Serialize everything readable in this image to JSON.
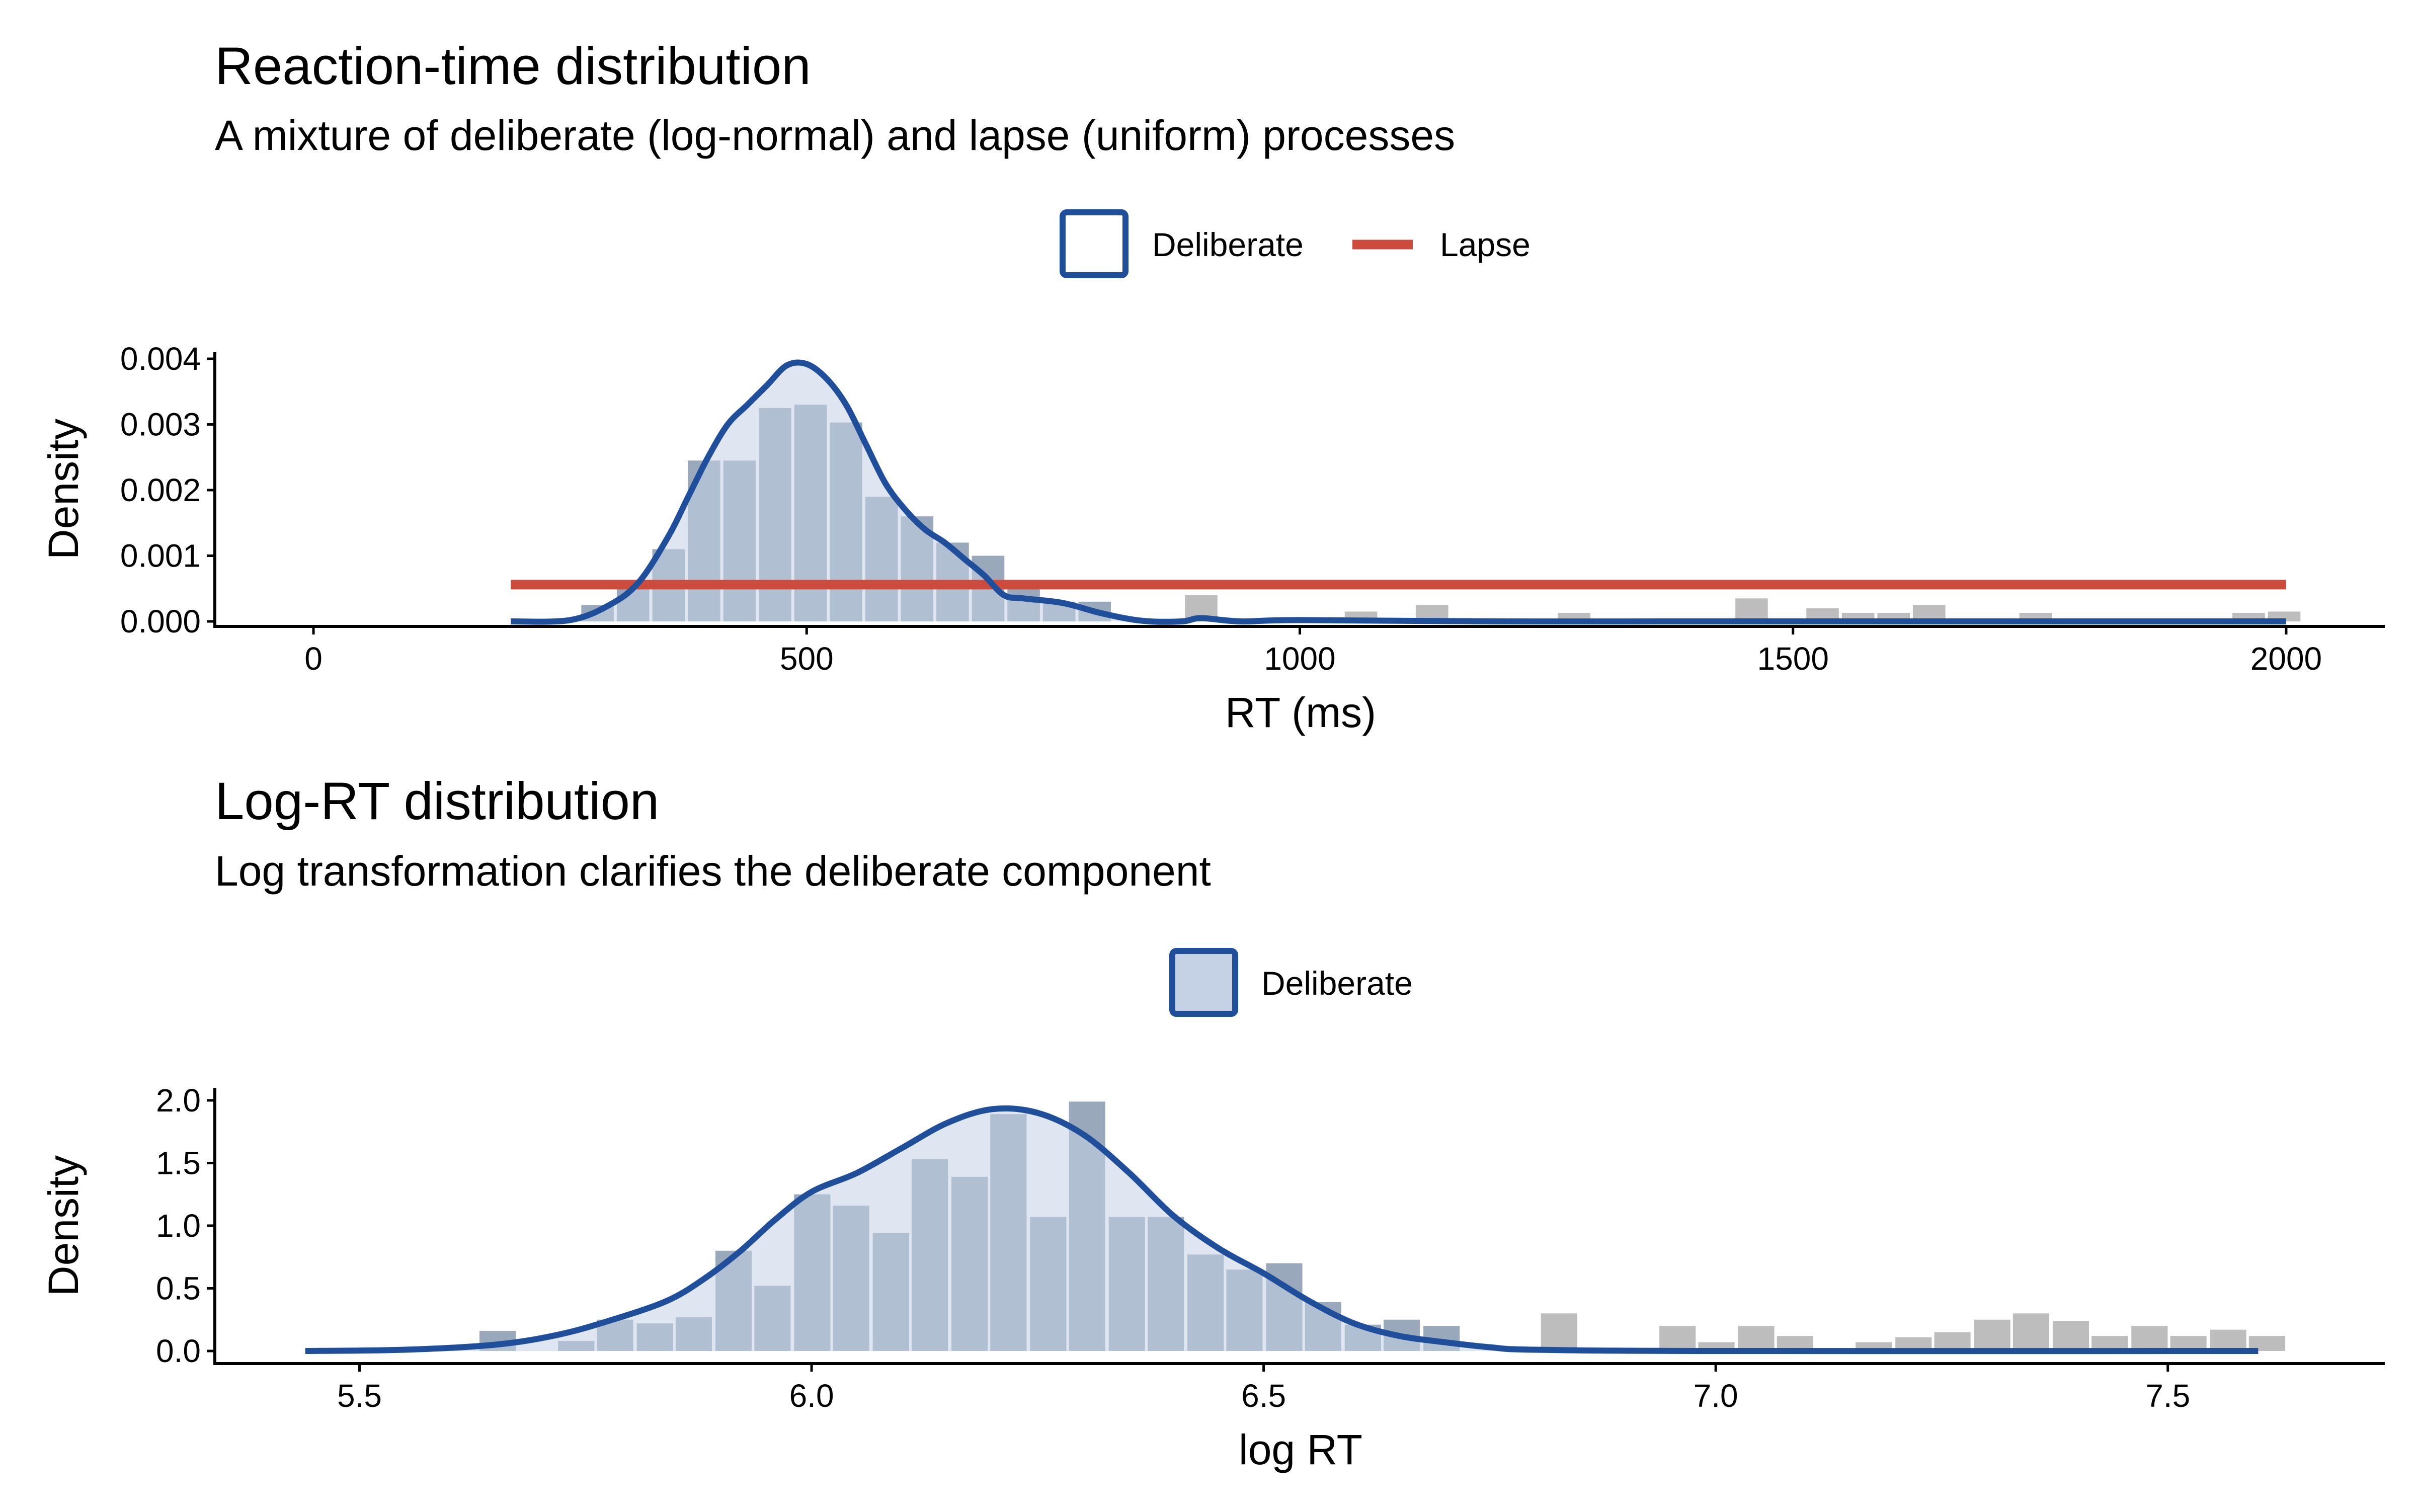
{
  "colors": {
    "deliberate_line": "#1f4e9b",
    "deliberate_fill": "#c5d2e6",
    "histogram_bar": "#bdbdbd",
    "histogram_bar_overlap": "#9aa8bb",
    "lapse_line": "#cc4b3c"
  },
  "chart_data": [
    {
      "type": "histogram",
      "title": "Reaction-time distribution",
      "subtitle": "A mixture of deliberate (log-normal) and lapse (uniform) processes",
      "xlabel": "RT (ms)",
      "ylabel": "Density",
      "xlim": [
        -100,
        2100
      ],
      "ylim": [
        0,
        0.0041
      ],
      "x_ticks": [
        0,
        500,
        1000,
        1500,
        2000
      ],
      "y_ticks": [
        0.0,
        0.001,
        0.002,
        0.003,
        0.004
      ],
      "x_tick_labels": [
        "0",
        "500",
        "1000",
        "1500",
        "2000"
      ],
      "y_tick_labels": [
        "0.000",
        "0.001",
        "0.002",
        "0.003",
        "0.004"
      ],
      "legend": {
        "position": "top",
        "entries": [
          {
            "label": "Deliberate",
            "kind": "box-outline"
          },
          {
            "label": "Lapse",
            "kind": "line"
          }
        ]
      },
      "histogram": {
        "bin_width": 36,
        "bins": [
          [
            234,
            3e-05
          ],
          [
            270,
            0.00025
          ],
          [
            306,
            0.00058
          ],
          [
            342,
            0.0011
          ],
          [
            378,
            0.00245
          ],
          [
            414,
            0.00245
          ],
          [
            450,
            0.00325
          ],
          [
            486,
            0.0033
          ],
          [
            522,
            0.00303
          ],
          [
            558,
            0.0019
          ],
          [
            594,
            0.0016
          ],
          [
            630,
            0.0012
          ],
          [
            666,
            0.001
          ],
          [
            702,
            0.0005
          ],
          [
            738,
            0.0003
          ],
          [
            774,
            0.0003
          ],
          [
            882,
            0.0004
          ],
          [
            1044,
            0.00015
          ],
          [
            1116,
            0.00025
          ],
          [
            1260,
            0.00013
          ],
          [
            1440,
            0.00035
          ],
          [
            1512,
            0.0002
          ],
          [
            1548,
            0.00013
          ],
          [
            1584,
            0.00013
          ],
          [
            1620,
            0.00025
          ],
          [
            1728,
            0.00013
          ],
          [
            1944,
            0.00013
          ],
          [
            1980,
            0.00015
          ]
        ]
      },
      "deliberate_density": [
        [
          200,
          0.0
        ],
        [
          260,
          2e-05
        ],
        [
          300,
          0.00025
        ],
        [
          330,
          0.0006
        ],
        [
          360,
          0.0013
        ],
        [
          380,
          0.0019
        ],
        [
          400,
          0.0025
        ],
        [
          420,
          0.003
        ],
        [
          440,
          0.0033
        ],
        [
          460,
          0.0036
        ],
        [
          480,
          0.0039
        ],
        [
          500,
          0.00392
        ],
        [
          520,
          0.0037
        ],
        [
          540,
          0.0033
        ],
        [
          560,
          0.0027
        ],
        [
          580,
          0.0021
        ],
        [
          600,
          0.0017
        ],
        [
          620,
          0.0014
        ],
        [
          640,
          0.0012
        ],
        [
          660,
          0.00095
        ],
        [
          680,
          0.0007
        ],
        [
          700,
          0.0004
        ],
        [
          720,
          0.00035
        ],
        [
          760,
          0.00028
        ],
        [
          800,
          0.00012
        ],
        [
          840,
          1e-05
        ],
        [
          880,
          0.0
        ],
        [
          900,
          5e-05
        ],
        [
          940,
          0.0
        ],
        [
          1000,
          2e-05
        ],
        [
          1200,
          0.0
        ],
        [
          1400,
          0.0
        ],
        [
          1600,
          0.0
        ],
        [
          1800,
          0.0
        ],
        [
          2000,
          0.0
        ]
      ],
      "lapse": {
        "x_start": 200,
        "x_end": 2000,
        "density": 0.00056
      }
    },
    {
      "type": "histogram",
      "title": "Log-RT distribution",
      "subtitle": "Log transformation clarifies the deliberate component",
      "xlabel": "log RT",
      "ylabel": "Density",
      "xlim": [
        5.34,
        7.74
      ],
      "ylim": [
        0,
        2.1
      ],
      "x_ticks": [
        5.5,
        6.0,
        6.5,
        7.0,
        7.5
      ],
      "y_ticks": [
        0.0,
        0.5,
        1.0,
        1.5,
        2.0
      ],
      "x_tick_labels": [
        "5.5",
        "6.0",
        "6.5",
        "7.0",
        "7.5"
      ],
      "y_tick_labels": [
        "0.0",
        "0.5",
        "1.0",
        "1.5",
        "2.0"
      ],
      "legend": {
        "position": "top",
        "entries": [
          {
            "label": "Deliberate",
            "kind": "box-filled"
          }
        ]
      },
      "histogram": {
        "bin_width": 0.0435,
        "bins": [
          [
            5.457,
            0.01
          ],
          [
            5.631,
            0.16
          ],
          [
            5.718,
            0.08
          ],
          [
            5.761,
            0.25
          ],
          [
            5.805,
            0.22
          ],
          [
            5.848,
            0.27
          ],
          [
            5.892,
            0.8
          ],
          [
            5.935,
            0.52
          ],
          [
            5.979,
            1.25
          ],
          [
            6.022,
            1.16
          ],
          [
            6.066,
            0.94
          ],
          [
            6.109,
            1.53
          ],
          [
            6.153,
            1.39
          ],
          [
            6.196,
            1.89
          ],
          [
            6.24,
            1.07
          ],
          [
            6.283,
            1.99
          ],
          [
            6.327,
            1.07
          ],
          [
            6.37,
            1.07
          ],
          [
            6.414,
            0.77
          ],
          [
            6.457,
            0.65
          ],
          [
            6.501,
            0.7
          ],
          [
            6.544,
            0.39
          ],
          [
            6.588,
            0.21
          ],
          [
            6.631,
            0.25
          ],
          [
            6.675,
            0.2
          ],
          [
            6.805,
            0.3
          ],
          [
            6.936,
            0.2
          ],
          [
            6.979,
            0.07
          ],
          [
            7.023,
            0.2
          ],
          [
            7.066,
            0.12
          ],
          [
            7.153,
            0.07
          ],
          [
            7.197,
            0.11
          ],
          [
            7.24,
            0.15
          ],
          [
            7.284,
            0.25
          ],
          [
            7.327,
            0.3
          ],
          [
            7.371,
            0.24
          ],
          [
            7.414,
            0.12
          ],
          [
            7.458,
            0.2
          ],
          [
            7.501,
            0.12
          ],
          [
            7.545,
            0.17
          ],
          [
            7.588,
            0.12
          ]
        ]
      },
      "deliberate_density": [
        [
          5.44,
          0.0
        ],
        [
          5.55,
          0.01
        ],
        [
          5.65,
          0.05
        ],
        [
          5.72,
          0.13
        ],
        [
          5.78,
          0.25
        ],
        [
          5.84,
          0.4
        ],
        [
          5.88,
          0.57
        ],
        [
          5.92,
          0.79
        ],
        [
          5.96,
          1.05
        ],
        [
          6.0,
          1.27
        ],
        [
          6.05,
          1.42
        ],
        [
          6.1,
          1.62
        ],
        [
          6.15,
          1.82
        ],
        [
          6.2,
          1.93
        ],
        [
          6.25,
          1.9
        ],
        [
          6.3,
          1.73
        ],
        [
          6.35,
          1.43
        ],
        [
          6.4,
          1.08
        ],
        [
          6.45,
          0.82
        ],
        [
          6.5,
          0.62
        ],
        [
          6.55,
          0.4
        ],
        [
          6.6,
          0.22
        ],
        [
          6.65,
          0.12
        ],
        [
          6.7,
          0.07
        ],
        [
          6.75,
          0.03
        ],
        [
          6.8,
          0.01
        ],
        [
          7.0,
          0.0
        ],
        [
          7.6,
          0.0
        ]
      ]
    }
  ]
}
